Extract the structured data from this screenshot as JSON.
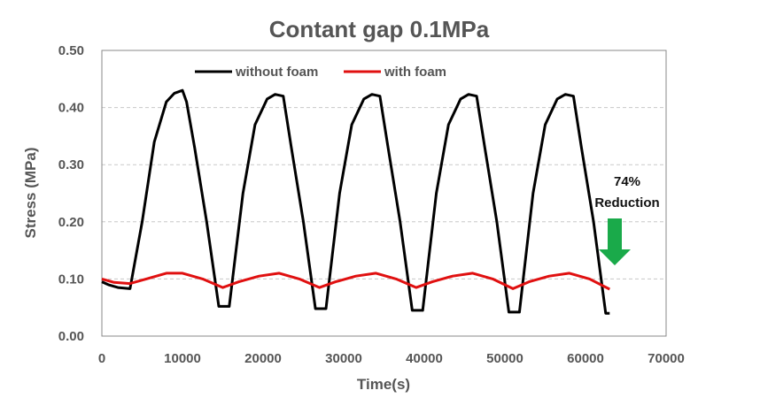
{
  "chart_data": {
    "type": "line",
    "title": "Contant gap 0.1MPa",
    "xlabel": "Time(s)",
    "ylabel": "Stress (MPa)",
    "xlim": [
      0,
      70000
    ],
    "ylim": [
      0,
      0.5
    ],
    "x_ticks": [
      0,
      10000,
      20000,
      30000,
      40000,
      50000,
      60000,
      70000
    ],
    "x_tick_labels": [
      "0",
      "10000",
      "20000",
      "30000",
      "40000",
      "50000",
      "60000",
      "70000"
    ],
    "y_ticks": [
      0,
      0.1,
      0.2,
      0.3,
      0.4,
      0.5
    ],
    "y_tick_labels": [
      "0.00",
      "0.10",
      "0.20",
      "0.30",
      "0.40",
      "0.50"
    ],
    "grid": "horizontal dashed",
    "legend_position": "top-left",
    "annotation": {
      "lines": [
        "74%",
        "Reduction"
      ],
      "arrow": "down",
      "arrow_color": "#1aaa4a"
    },
    "series": [
      {
        "name": "without foam",
        "color": "#000000",
        "x": [
          0,
          800,
          2000,
          3500,
          5000,
          6500,
          8000,
          9000,
          10000,
          10500,
          11500,
          13000,
          14500,
          15800,
          17500,
          19000,
          20500,
          21500,
          22500,
          23500,
          25000,
          26500,
          27800,
          29500,
          31000,
          32500,
          33500,
          34500,
          35500,
          37000,
          38500,
          39800,
          41500,
          43000,
          44500,
          45500,
          46500,
          47500,
          49000,
          50500,
          51800,
          53500,
          55000,
          56500,
          57500,
          58500,
          59500,
          61000,
          62500,
          63000
        ],
        "y": [
          0.095,
          0.09,
          0.085,
          0.083,
          0.2,
          0.34,
          0.41,
          0.425,
          0.43,
          0.41,
          0.33,
          0.2,
          0.052,
          0.052,
          0.25,
          0.37,
          0.415,
          0.423,
          0.42,
          0.33,
          0.2,
          0.048,
          0.048,
          0.25,
          0.37,
          0.415,
          0.423,
          0.42,
          0.33,
          0.2,
          0.045,
          0.045,
          0.25,
          0.37,
          0.415,
          0.423,
          0.42,
          0.33,
          0.2,
          0.042,
          0.042,
          0.25,
          0.37,
          0.415,
          0.423,
          0.42,
          0.33,
          0.2,
          0.04,
          0.04
        ]
      },
      {
        "name": "with foam",
        "color": "#e01010",
        "x": [
          0,
          1500,
          3500,
          5500,
          8000,
          10000,
          12500,
          15000,
          17000,
          19500,
          22000,
          24500,
          27000,
          29000,
          31500,
          34000,
          36500,
          39000,
          41000,
          43500,
          46000,
          48500,
          51000,
          53000,
          55500,
          58000,
          60500,
          63000
        ],
        "y": [
          0.1,
          0.094,
          0.092,
          0.1,
          0.11,
          0.11,
          0.1,
          0.085,
          0.095,
          0.105,
          0.11,
          0.1,
          0.085,
          0.095,
          0.105,
          0.11,
          0.1,
          0.085,
          0.095,
          0.105,
          0.11,
          0.1,
          0.083,
          0.095,
          0.105,
          0.11,
          0.1,
          0.082
        ]
      }
    ]
  }
}
